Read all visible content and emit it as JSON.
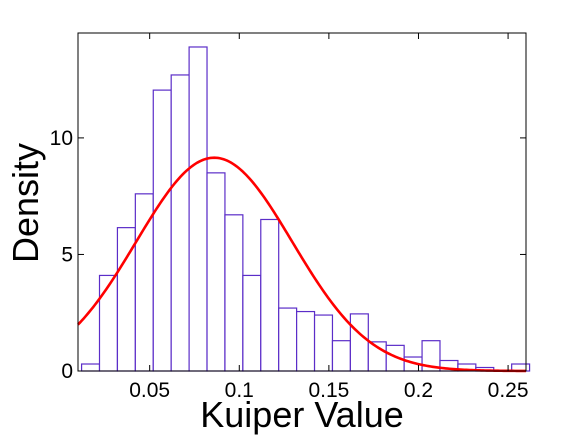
{
  "chart_data": {
    "type": "bar",
    "xlabel": "Kuiper Value",
    "ylabel": "Density",
    "xlim": [
      0.01,
      0.26
    ],
    "ylim": [
      0,
      14.5
    ],
    "x_ticks": [
      0.05,
      0.1,
      0.15,
      0.2,
      0.25
    ],
    "x_tick_labels": [
      "0.05",
      "0.1",
      "0.15",
      "0.2",
      "0.25"
    ],
    "y_ticks": [
      0,
      5,
      10
    ],
    "y_tick_labels": [
      "0",
      "5",
      "10"
    ],
    "grid": false,
    "bar_color": "#5b2dc8",
    "bins": [
      {
        "x0": 0.012,
        "x1": 0.022,
        "y": 0.3
      },
      {
        "x0": 0.022,
        "x1": 0.032,
        "y": 4.1
      },
      {
        "x0": 0.032,
        "x1": 0.042,
        "y": 6.15
      },
      {
        "x0": 0.042,
        "x1": 0.052,
        "y": 7.6
      },
      {
        "x0": 0.052,
        "x1": 0.062,
        "y": 12.05
      },
      {
        "x0": 0.062,
        "x1": 0.072,
        "y": 12.7
      },
      {
        "x0": 0.072,
        "x1": 0.082,
        "y": 13.9
      },
      {
        "x0": 0.082,
        "x1": 0.092,
        "y": 8.5
      },
      {
        "x0": 0.092,
        "x1": 0.102,
        "y": 6.7
      },
      {
        "x0": 0.102,
        "x1": 0.112,
        "y": 4.1
      },
      {
        "x0": 0.112,
        "x1": 0.122,
        "y": 6.5
      },
      {
        "x0": 0.122,
        "x1": 0.132,
        "y": 2.7
      },
      {
        "x0": 0.132,
        "x1": 0.142,
        "y": 2.55
      },
      {
        "x0": 0.142,
        "x1": 0.152,
        "y": 2.4
      },
      {
        "x0": 0.152,
        "x1": 0.162,
        "y": 1.3
      },
      {
        "x0": 0.162,
        "x1": 0.172,
        "y": 2.45
      },
      {
        "x0": 0.172,
        "x1": 0.182,
        "y": 1.25
      },
      {
        "x0": 0.182,
        "x1": 0.192,
        "y": 1.1
      },
      {
        "x0": 0.192,
        "x1": 0.202,
        "y": 0.6
      },
      {
        "x0": 0.202,
        "x1": 0.212,
        "y": 1.3
      },
      {
        "x0": 0.212,
        "x1": 0.222,
        "y": 0.45
      },
      {
        "x0": 0.222,
        "x1": 0.232,
        "y": 0.3
      },
      {
        "x0": 0.232,
        "x1": 0.242,
        "y": 0.15
      },
      {
        "x0": 0.242,
        "x1": 0.252,
        "y": 0.0
      },
      {
        "x0": 0.252,
        "x1": 0.262,
        "y": 0.3
      }
    ],
    "curve": {
      "type": "normal-density",
      "color": "#ff0000",
      "mean": 0.086,
      "sd": 0.0435,
      "peak": 9.15
    }
  }
}
